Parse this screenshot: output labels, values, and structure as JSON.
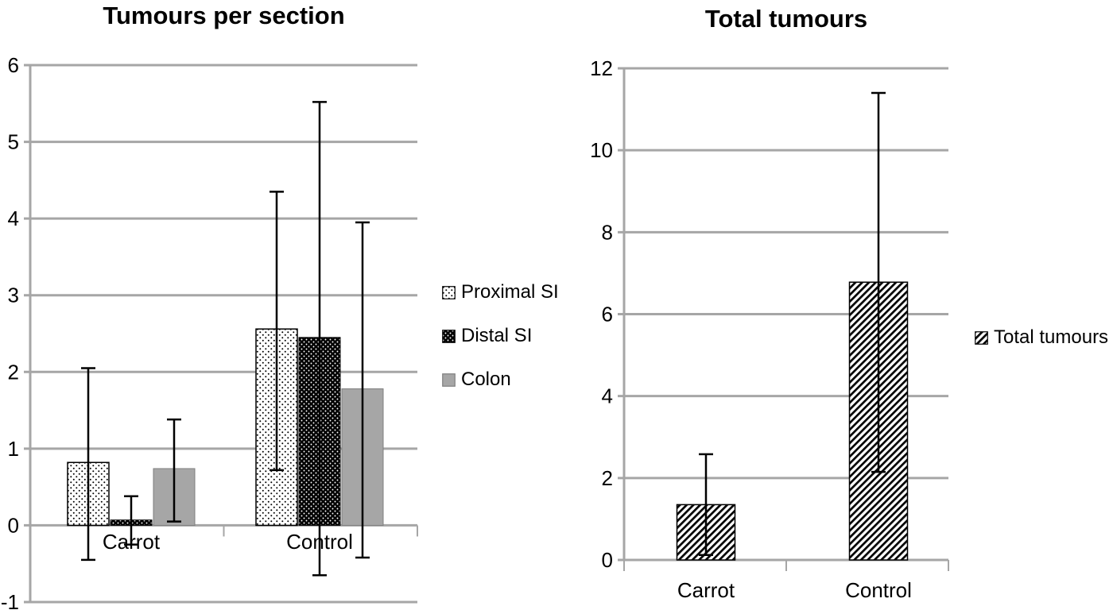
{
  "colors": {
    "grid": "#a6a6a6",
    "bar_gray": "#a6a6a6",
    "error": "#000000",
    "text": "#000000",
    "background": "#ffffff"
  },
  "chart_data": [
    {
      "type": "bar",
      "title": "Tumours per section",
      "categories": [
        "Carrot",
        "Control"
      ],
      "series": [
        {
          "name": "Proximal SI",
          "fill": "white-dotted",
          "values": [
            0.82,
            2.56
          ],
          "err_lo": [
            -0.45,
            0.72
          ],
          "err_hi": [
            2.05,
            4.35
          ]
        },
        {
          "name": "Distal SI",
          "fill": "black-dotted",
          "values": [
            0.07,
            2.45
          ],
          "err_lo": [
            -0.25,
            -0.65
          ],
          "err_hi": [
            0.38,
            5.52
          ]
        },
        {
          "name": "Colon",
          "fill": "gray",
          "values": [
            0.74,
            1.78
          ],
          "err_lo": [
            0.05,
            -0.42
          ],
          "err_hi": [
            1.38,
            3.95
          ]
        }
      ],
      "ylim": [
        -1,
        6
      ],
      "yticks": [
        -1,
        0,
        1,
        2,
        3,
        4,
        5,
        6
      ],
      "grid": true,
      "legend_position": "right"
    },
    {
      "type": "bar",
      "title": "Total tumours",
      "categories": [
        "Carrot",
        "Control"
      ],
      "series": [
        {
          "name": "Total tumours",
          "fill": "diagonal-stripes",
          "values": [
            1.35,
            6.78
          ],
          "err_lo": [
            0.12,
            2.15
          ],
          "err_hi": [
            2.58,
            11.4
          ]
        }
      ],
      "ylim": [
        0,
        12
      ],
      "yticks": [
        0,
        2,
        4,
        6,
        8,
        10,
        12
      ],
      "grid": true,
      "legend_position": "right"
    }
  ]
}
